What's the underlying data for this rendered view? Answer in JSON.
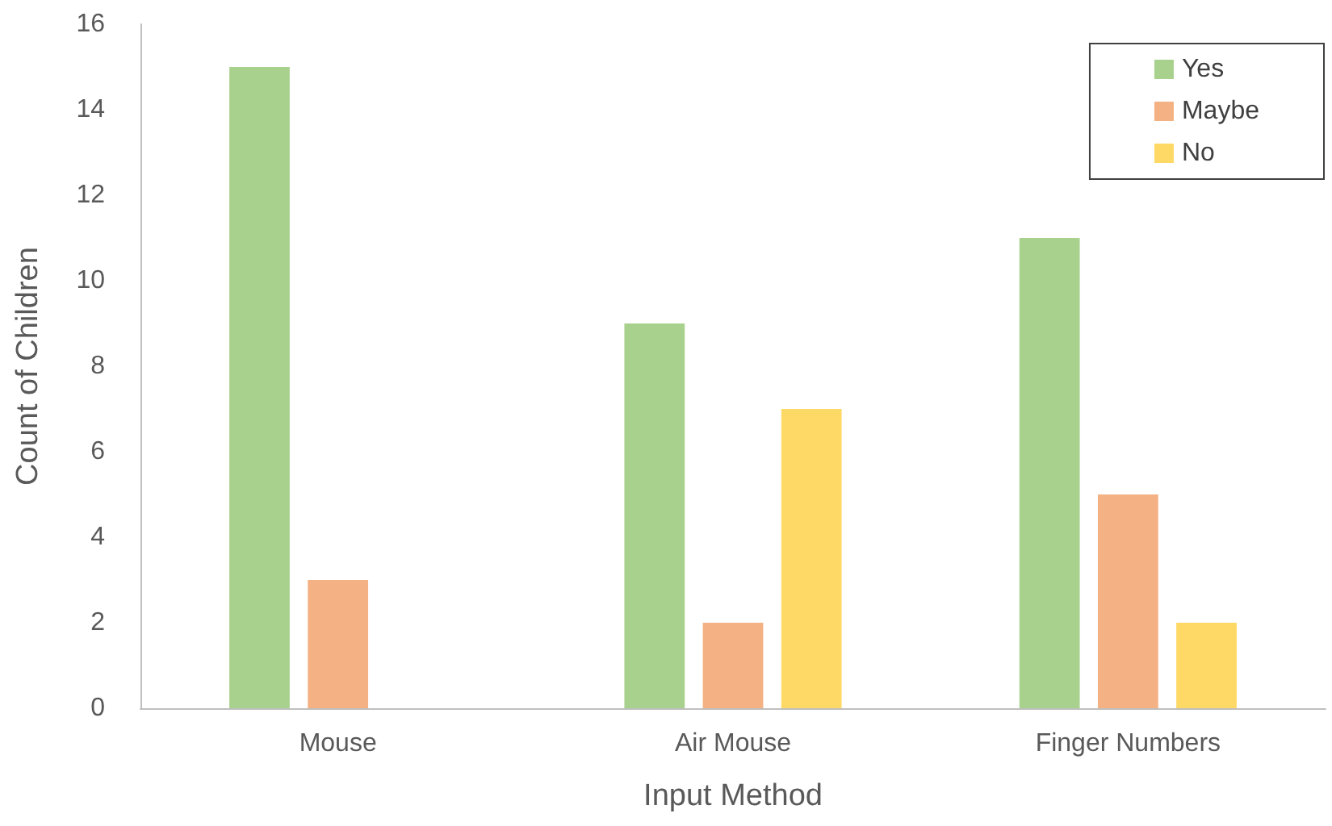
{
  "chart_data": {
    "type": "bar",
    "xlabel": "Input Method",
    "ylabel": "Count of Children",
    "categories": [
      "Mouse",
      "Air Mouse",
      "Finger Numbers"
    ],
    "series": [
      {
        "name": "Yes",
        "color": "#a9d18e",
        "values": [
          15,
          9,
          11
        ]
      },
      {
        "name": "Maybe",
        "color": "#f4b183",
        "values": [
          3,
          2,
          5
        ]
      },
      {
        "name": "No",
        "color": "#ffd966",
        "values": [
          0,
          7,
          2
        ]
      }
    ],
    "ylim": [
      0,
      16
    ],
    "yticks": [
      0,
      2,
      4,
      6,
      8,
      10,
      12,
      14,
      16
    ],
    "grid": false,
    "legend": "top right"
  }
}
